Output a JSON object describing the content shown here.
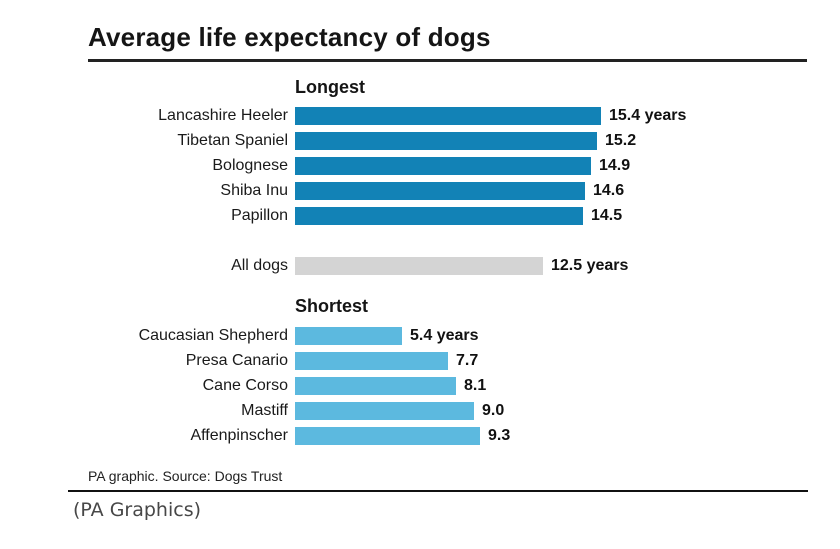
{
  "title": "Average life expectancy of dogs",
  "source_note": "PA graphic. Source: Dogs Trust",
  "caption": "(PA Graphics)",
  "colors": {
    "longest_bar": "#1282B6",
    "all_dogs_bar": "#D4D4D4",
    "shortest_bar": "#5CB9DF",
    "title_text": "#151515",
    "rule": "#222222"
  },
  "chart_data": {
    "type": "bar",
    "orientation": "horizontal",
    "title": "Average life expectancy of dogs",
    "unit": "years",
    "xlim": [
      0,
      15.4
    ],
    "grid": false,
    "legend": false,
    "sections": [
      {
        "id": "longest",
        "header": "Longest",
        "color_key": "longest_bar",
        "rows": [
          {
            "label": "Lancashire Heeler",
            "value": 15.4,
            "value_label": "15.4 years"
          },
          {
            "label": "Tibetan Spaniel",
            "value": 15.2,
            "value_label": "15.2"
          },
          {
            "label": "Bolognese",
            "value": 14.9,
            "value_label": "14.9"
          },
          {
            "label": "Shiba Inu",
            "value": 14.6,
            "value_label": "14.6"
          },
          {
            "label": "Papillon",
            "value": 14.5,
            "value_label": "14.5"
          }
        ]
      },
      {
        "id": "alldogs",
        "header": null,
        "color_key": "all_dogs_bar",
        "rows": [
          {
            "label": "All dogs",
            "value": 12.5,
            "value_label": "12.5 years"
          }
        ]
      },
      {
        "id": "shortest",
        "header": "Shortest",
        "color_key": "shortest_bar",
        "rows": [
          {
            "label": "Caucasian Shepherd",
            "value": 5.4,
            "value_label": "5.4 years"
          },
          {
            "label": "Presa Canario",
            "value": 7.7,
            "value_label": "7.7"
          },
          {
            "label": "Cane Corso",
            "value": 8.1,
            "value_label": "8.1"
          },
          {
            "label": "Mastiff",
            "value": 9.0,
            "value_label": "9.0"
          },
          {
            "label": "Affenpinscher",
            "value": 9.3,
            "value_label": "9.3"
          }
        ]
      }
    ]
  }
}
